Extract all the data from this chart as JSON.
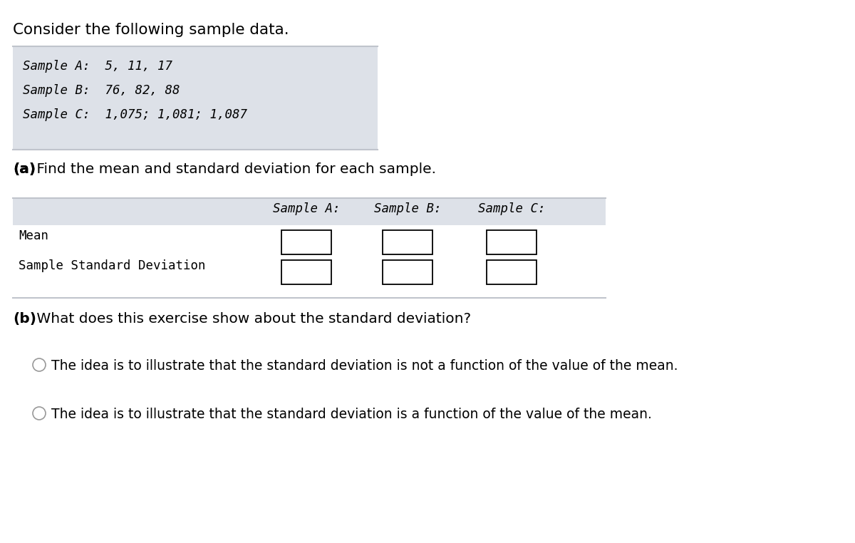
{
  "title": "Consider the following sample data.",
  "bg_color": "#ffffff",
  "table1_bg": "#dde1e8",
  "table1_text_lines": [
    "Sample A:  5, 11, 17",
    "Sample B:  76, 82, 88",
    "Sample C:  1,075; 1,081; 1,087"
  ],
  "part_a_label_bold": "(a)",
  "part_a_label_rest": " Find the mean and standard deviation for each sample.",
  "table2_col_headers": [
    "Sample A:",
    "Sample B:",
    "Sample C:"
  ],
  "table2_row_headers": [
    "Mean",
    "Sample Standard Deviation"
  ],
  "part_b_label_bold": "(b)",
  "part_b_label_rest": " What does this exercise show about the standard deviation?",
  "option1": "The idea is to illustrate that the standard deviation is not a function of the value of the mean.",
  "option2": "The idea is to illustrate that the standard deviation is a function of the value of the mean.",
  "font_mono": "DejaVu Sans Mono",
  "font_sans": "DejaVu Sans",
  "table1_border_color": "#c0c4cc",
  "table2_border_color": "#c0c4cc"
}
